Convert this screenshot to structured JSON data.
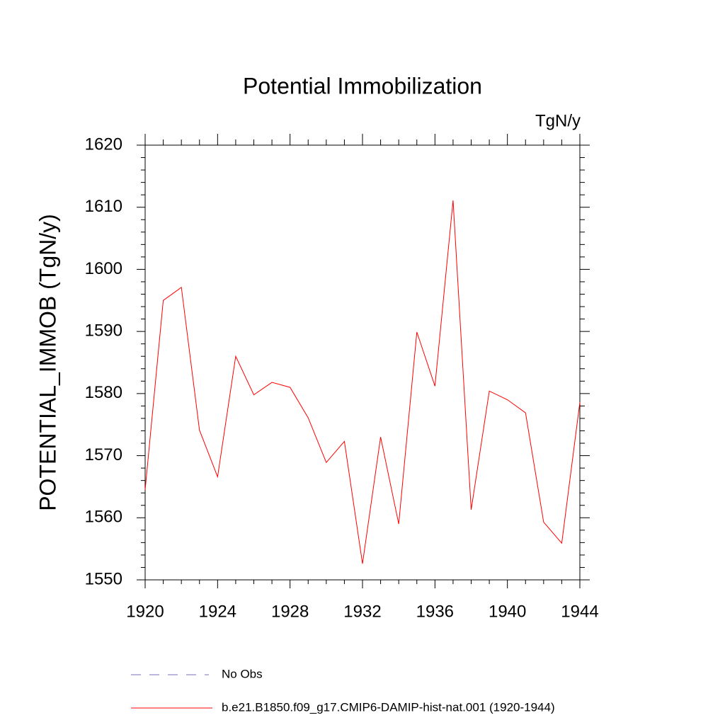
{
  "chart_data": {
    "type": "line",
    "title": "Potential Immobilization",
    "units": "TgN/y",
    "y_label": "POTENTIAL_IMMOB  (TgN/y)",
    "x": [
      1920,
      1921,
      1922,
      1923,
      1924,
      1925,
      1926,
      1927,
      1928,
      1929,
      1930,
      1931,
      1932,
      1933,
      1934,
      1935,
      1936,
      1937,
      1938,
      1939,
      1940,
      1941,
      1942,
      1943,
      1944
    ],
    "series": [
      {
        "name": "b.e21.B1850.f09_g17.CMIP6-DAMIP-hist-nat.001 (1920-1944)",
        "color": "#ff0000",
        "values": [
          1564.5,
          1595.0,
          1597.1,
          1574.1,
          1566.6,
          1586.0,
          1579.8,
          1581.8,
          1581.0,
          1576.1,
          1568.9,
          1572.3,
          1552.6,
          1573.0,
          1559.0,
          1589.9,
          1581.2,
          1611.1,
          1561.3,
          1580.4,
          1579.0,
          1576.9,
          1559.3,
          1555.9,
          1578.6
        ]
      }
    ],
    "legend_extra": {
      "name": "No Obs",
      "color": "#7b6fc0",
      "style": "dashed"
    },
    "xlim": [
      1920,
      1944
    ],
    "xticks": [
      1920,
      1924,
      1928,
      1932,
      1936,
      1940,
      1944
    ],
    "xminorticks": [
      1921,
      1922,
      1923,
      1925,
      1926,
      1927,
      1929,
      1930,
      1931,
      1933,
      1934,
      1935,
      1937,
      1938,
      1939,
      1941,
      1942,
      1943
    ],
    "ylim": [
      1550,
      1620
    ],
    "yticks": [
      1550,
      1560,
      1570,
      1580,
      1590,
      1600,
      1610,
      1620
    ],
    "yminorticks": [
      1552,
      1554,
      1556,
      1558,
      1562,
      1564,
      1566,
      1568,
      1572,
      1574,
      1576,
      1578,
      1582,
      1584,
      1586,
      1588,
      1592,
      1594,
      1596,
      1598,
      1602,
      1604,
      1606,
      1608,
      1612,
      1614,
      1616,
      1618
    ]
  }
}
